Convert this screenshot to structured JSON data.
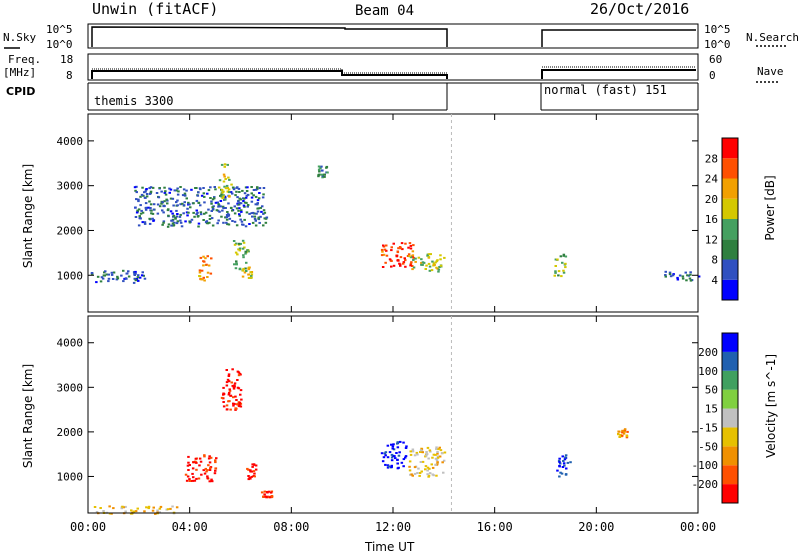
{
  "header": {
    "station": "Unwin (fitACF)",
    "beam": "Beam 04",
    "date": "26/Oct/2016"
  },
  "top_panels": {
    "nsky_label": "N.Sky",
    "nsky_ticks": [
      "10^5",
      "10^0"
    ],
    "nsearch_label": "N.Search",
    "nsearch_ticks": [
      "10^5",
      "10^0"
    ],
    "freq_label": "Freq.",
    "freq_unit": "[MHz]",
    "freq_ticks": [
      "18",
      "8"
    ],
    "nave_label": "Nave",
    "nave_ticks": [
      "60",
      "0"
    ],
    "cpid_label": "CPID",
    "cpid_segments": [
      {
        "label": "themis 3300",
        "start_h": 0.0,
        "end_h": 14.3
      },
      {
        "label": "normal (fast) 151",
        "start_h": 18.0,
        "end_h": 24.0
      }
    ]
  },
  "chart_data": [
    {
      "type": "heatmap",
      "title": "",
      "xlabel": "Time UT",
      "ylabel": "Slant Range [km]",
      "xticks": [
        "00:00",
        "04:00",
        "08:00",
        "12:00",
        "16:00",
        "20:00",
        "00:00"
      ],
      "xlim_hours": [
        0,
        24
      ],
      "ylim": [
        180,
        4600
      ],
      "yticks": [
        1000,
        2000,
        3000,
        4000
      ],
      "colorbar": {
        "label": "Power [dB]",
        "ticks": [
          "28",
          "24",
          "20",
          "16",
          "12",
          "8",
          "4"
        ],
        "range": [
          0,
          30
        ]
      },
      "data_gaps_hours": [
        [
          14.3,
          18.0
        ]
      ],
      "echo_regions": [
        {
          "t": [
            0.1,
            2.2
          ],
          "r": [
            850,
            1150
          ],
          "power": 6
        },
        {
          "t": [
            1.8,
            7.0
          ],
          "r": [
            2100,
            3000
          ],
          "power": 7
        },
        {
          "t": [
            4.3,
            4.8
          ],
          "r": [
            900,
            1500
          ],
          "power": 22
        },
        {
          "t": [
            5.1,
            5.6
          ],
          "r": [
            2700,
            3500
          ],
          "power": 16
        },
        {
          "t": [
            5.7,
            6.3
          ],
          "r": [
            1100,
            1800
          ],
          "power": 14
        },
        {
          "t": [
            6.0,
            6.4
          ],
          "r": [
            950,
            1200
          ],
          "power": 18
        },
        {
          "t": [
            9.0,
            9.4
          ],
          "r": [
            3200,
            3450
          ],
          "power": 10
        },
        {
          "t": [
            11.5,
            12.8
          ],
          "r": [
            1200,
            1750
          ],
          "power": 26
        },
        {
          "t": [
            12.6,
            14.0
          ],
          "r": [
            1100,
            1500
          ],
          "power": 16
        },
        {
          "t": [
            18.3,
            18.8
          ],
          "r": [
            1000,
            1500
          ],
          "power": 14
        },
        {
          "t": [
            22.6,
            24.0
          ],
          "r": [
            900,
            1100
          ],
          "power": 6
        }
      ]
    },
    {
      "type": "heatmap",
      "title": "",
      "xlabel": "Time UT",
      "ylabel": "Slant Range [km]",
      "xticks": [
        "00:00",
        "04:00",
        "08:00",
        "12:00",
        "16:00",
        "20:00",
        "00:00"
      ],
      "xlim_hours": [
        0,
        24
      ],
      "ylim": [
        180,
        4600
      ],
      "yticks": [
        1000,
        2000,
        3000,
        4000
      ],
      "colorbar": {
        "label": "Velocity [m s^-1]",
        "ticks": [
          "200",
          "100",
          "50",
          "15",
          "-15",
          "-50",
          "-100",
          "-200"
        ],
        "range": [
          -250,
          250
        ]
      },
      "data_gaps_hours": [
        [
          14.3,
          18.0
        ]
      ],
      "echo_regions": [
        {
          "t": [
            0.2,
            3.5
          ],
          "r": [
            180,
            350
          ],
          "velocity": -60
        },
        {
          "t": [
            3.8,
            5.0
          ],
          "r": [
            900,
            1500
          ],
          "velocity": -230
        },
        {
          "t": [
            5.2,
            6.0
          ],
          "r": [
            2500,
            3500
          ],
          "velocity": -220
        },
        {
          "t": [
            6.2,
            6.6
          ],
          "r": [
            950,
            1300
          ],
          "velocity": -220
        },
        {
          "t": [
            6.8,
            7.2
          ],
          "r": [
            550,
            700
          ],
          "velocity": -200
        },
        {
          "t": [
            11.5,
            12.5
          ],
          "r": [
            1200,
            1800
          ],
          "velocity": 230
        },
        {
          "t": [
            12.6,
            14.0
          ],
          "r": [
            1000,
            1700
          ],
          "velocity": -40
        },
        {
          "t": [
            18.4,
            19.0
          ],
          "r": [
            1000,
            1500
          ],
          "velocity": 200
        },
        {
          "t": [
            20.8,
            21.2
          ],
          "r": [
            1900,
            2100
          ],
          "velocity": -110
        }
      ]
    }
  ]
}
